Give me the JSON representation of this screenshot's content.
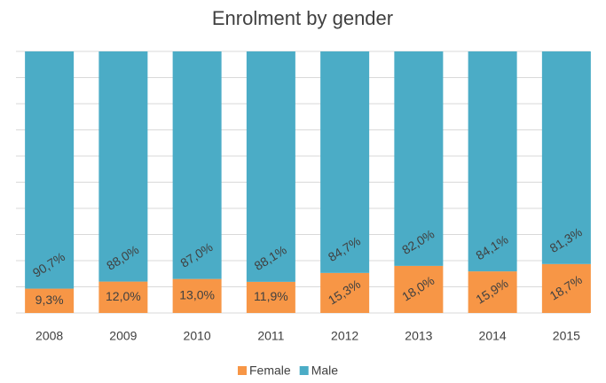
{
  "chart_data": {
    "type": "bar",
    "stacked": true,
    "title": "Enrolment by gender",
    "categories": [
      "2008",
      "2009",
      "2010",
      "2011",
      "2012",
      "2013",
      "2014",
      "2015"
    ],
    "series": [
      {
        "name": "Female",
        "color": "#f79646",
        "values": [
          9.3,
          12.0,
          13.0,
          11.9,
          15.3,
          18.0,
          15.9,
          18.7
        ],
        "value_labels": [
          "9,3%",
          "12,0%",
          "13,0%",
          "11,9%",
          "15,3%",
          "18,0%",
          "15,9%",
          "18,7%"
        ]
      },
      {
        "name": "Male",
        "color": "#4bacc6",
        "values": [
          90.7,
          88.0,
          87.0,
          88.1,
          84.7,
          82.0,
          84.1,
          81.3
        ],
        "value_labels": [
          "90,7%",
          "88,0%",
          "87,0%",
          "88,1%",
          "84,7%",
          "82,0%",
          "84,1%",
          "81,3%"
        ]
      }
    ],
    "ylim": [
      0,
      100
    ],
    "yticks": [
      0,
      10,
      20,
      30,
      40,
      50,
      60,
      70,
      80,
      90,
      100
    ],
    "grid": true,
    "legend": "bottom"
  }
}
